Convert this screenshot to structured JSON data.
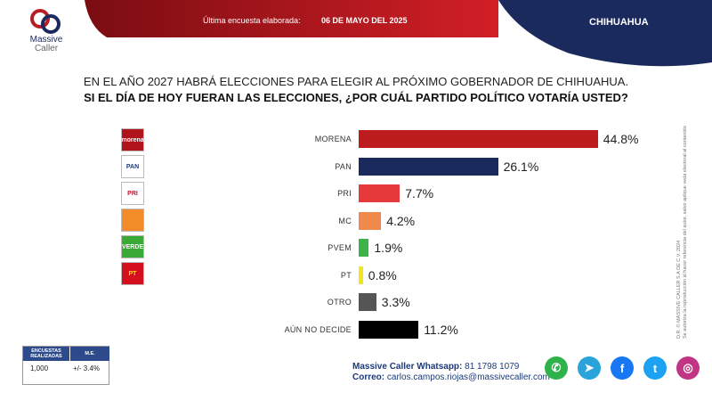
{
  "brand": {
    "line1": "Massive",
    "line2": "Caller"
  },
  "header": {
    "survey_label": "Última encuesta elaborada:",
    "survey_date": "06 DE MAYO DEL 2025",
    "state": "CHIHUAHUA"
  },
  "question": {
    "line1": "EN EL AÑO 2027 HABRÁ ELECCIONES PARA ELEGIR AL PRÓXIMO GOBERNADOR DE CHIHUAHUA.",
    "line2": "SI EL DÍA DE HOY FUERAN LAS ELECCIONES, ¿POR CUÁL PARTIDO POLÍTICO VOTARÍA USTED?"
  },
  "party_logos": [
    {
      "text": "morena",
      "icon": "morena-logo",
      "bg": "#b0131a",
      "fg": "#ffffff"
    },
    {
      "text": "PAN",
      "icon": "pan-logo",
      "bg": "#ffffff",
      "fg": "#1b3a8a"
    },
    {
      "text": "PRI",
      "icon": "pri-logo",
      "bg": "#ffffff",
      "fg": "#c8102e"
    },
    {
      "text": "",
      "icon": "mc-logo",
      "bg": "#f28c28",
      "fg": "#ffffff"
    },
    {
      "text": "VERDE",
      "icon": "pvem-logo",
      "bg": "#3aa935",
      "fg": "#ffffff"
    },
    {
      "text": "PT",
      "icon": "pt-logo",
      "bg": "#d4101e",
      "fg": "#ffe100"
    }
  ],
  "chart_data": {
    "type": "bar",
    "orientation": "horizontal",
    "categories": [
      "MORENA",
      "PAN",
      "PRI",
      "MC",
      "PVEM",
      "PT",
      "OTRO",
      "AÚN NO DECIDE"
    ],
    "values": [
      44.8,
      26.1,
      7.7,
      4.2,
      1.9,
      0.8,
      3.3,
      11.2
    ],
    "value_labels": [
      "44.8%",
      "26.1%",
      "7.7%",
      "4.2%",
      "1.9%",
      "0.8%",
      "3.3%",
      "11.2%"
    ],
    "colors": [
      "#bc1c1c",
      "#1b2a5c",
      "#e63a3a",
      "#f08a4b",
      "#3cb44a",
      "#f2e51a",
      "#555555",
      "#000000"
    ],
    "grid": false,
    "legend": "none"
  },
  "side_note": {
    "line1": "D.R. © MASSIVE CALLER S.A DE C.V. 2024",
    "line2": "Se autoriza la reproducción al hacer referencia del autor, salvo aplique veda electoral al contenido"
  },
  "stats_box": {
    "h1": "ENCUESTAS REALIZADAS",
    "h2": "M.E.",
    "v1": "1,000",
    "v2": "+/- 3.4%"
  },
  "contact": {
    "whatsapp_label": "Massive Caller Whatsapp:",
    "whatsapp_number": "81 1798 1079",
    "email_label": "Correo:",
    "email": "carlos.campos.riojas@massivecaller.com"
  },
  "social": [
    {
      "icon": "whatsapp-icon",
      "glyph": "✆",
      "color": "#2fb24c"
    },
    {
      "icon": "telegram-icon",
      "glyph": "➤",
      "color": "#2aa3da"
    },
    {
      "icon": "facebook-icon",
      "glyph": "f",
      "color": "#1877f2"
    },
    {
      "icon": "twitter-icon",
      "glyph": "t",
      "color": "#1da1f2"
    },
    {
      "icon": "instagram-icon",
      "glyph": "◎",
      "color": "#c13584"
    }
  ]
}
